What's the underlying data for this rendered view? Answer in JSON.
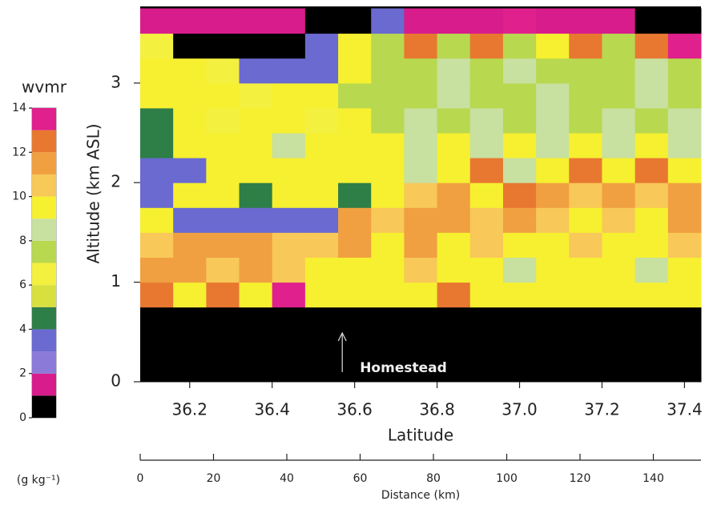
{
  "chart_data": {
    "type": "heatmap",
    "ylabel": "Altitude (km ASL)",
    "xlabel": "Latitude",
    "xlim": [
      36.08,
      37.44
    ],
    "xticks": [
      {
        "value": 36.2,
        "label": "36.2"
      },
      {
        "value": 36.4,
        "label": "36.4"
      },
      {
        "value": 36.6,
        "label": "36.6"
      },
      {
        "value": 36.8,
        "label": "36.8"
      },
      {
        "value": 37.0,
        "label": "37.0"
      },
      {
        "value": 37.2,
        "label": "37.2"
      },
      {
        "value": 37.4,
        "label": "37.4"
      }
    ],
    "ylim": [
      0,
      3.77
    ],
    "yticks": [
      0,
      1,
      2,
      3
    ],
    "x2label": "Distance (km)",
    "x2lim": [
      0,
      153
    ],
    "x2ticks": [
      0,
      20,
      40,
      60,
      80,
      100,
      120,
      140
    ],
    "colorbar": {
      "title": "wvmr",
      "unit": "(g kg⁻¹)",
      "lim": [
        0,
        14
      ],
      "ticks": [
        0,
        2,
        4,
        6,
        8,
        10,
        12,
        14
      ],
      "colors": [
        "#000000",
        "#d81c8c",
        "#8c7ad8",
        "#6a6ad0",
        "#2e7e48",
        "#d8e040",
        "#f4f040",
        "#b8d850",
        "#c8e0a0",
        "#f6f030",
        "#f8c858",
        "#f0a040",
        "#e87830",
        "#e0208c"
      ]
    },
    "annotation": {
      "text": "Homestead",
      "x": 36.57
    },
    "xbins": [
      36.08,
      36.16,
      36.24,
      36.32,
      36.4,
      36.48,
      36.56,
      36.64,
      36.72,
      36.8,
      36.88,
      36.96,
      37.04,
      37.12,
      37.2,
      37.28,
      37.36,
      37.44
    ],
    "ybins": [
      0,
      0.25,
      0.5,
      0.75,
      1.0,
      1.25,
      1.5,
      1.75,
      2.0,
      2.25,
      2.5,
      2.75,
      3.0,
      3.25,
      3.5,
      3.75
    ],
    "z": [
      [
        0.5,
        0.5,
        0.5,
        0.5,
        0.5,
        0.5,
        0.5,
        0.5,
        0.5,
        0.5,
        0.5,
        0.5,
        0.5,
        0.5,
        0.5,
        0.5,
        0.5
      ],
      [
        0.5,
        0.5,
        0.5,
        0.5,
        0.5,
        0.5,
        0.5,
        0.5,
        0.5,
        0.5,
        0.5,
        0.5,
        0.5,
        0.5,
        0.5,
        0.5,
        0.5
      ],
      [
        0.5,
        0.5,
        0.5,
        0.5,
        0.5,
        0.5,
        0.5,
        0.5,
        0.5,
        0.5,
        0.5,
        0.5,
        0.5,
        0.5,
        0.5,
        0.5,
        0.5
      ],
      [
        12.5,
        9.5,
        12.5,
        9.5,
        13.5,
        9.5,
        9.5,
        9.5,
        9.5,
        12.5,
        9.5,
        9.5,
        9.5,
        9.5,
        9.5,
        9.5,
        9.5
      ],
      [
        11.5,
        11.5,
        10.5,
        11.5,
        10.5,
        9.5,
        9.5,
        9.5,
        10.5,
        9.5,
        9.5,
        8.5,
        9.5,
        9.5,
        9.5,
        8.5,
        9.5
      ],
      [
        10.5,
        11.5,
        11.5,
        11.5,
        10.5,
        10.5,
        11.5,
        9.5,
        11.5,
        9.5,
        10.5,
        9.5,
        9.5,
        10.5,
        9.5,
        9.5,
        10.5
      ],
      [
        9.5,
        3.5,
        3.5,
        3.5,
        3.5,
        3.5,
        11.5,
        10.5,
        11.5,
        11.5,
        10.5,
        11.5,
        10.5,
        9.5,
        10.5,
        9.5,
        11.5
      ],
      [
        3.5,
        9.5,
        9.5,
        4.5,
        9.5,
        9.5,
        4.5,
        9.5,
        10.5,
        11.5,
        9.5,
        12.5,
        11.5,
        10.5,
        11.5,
        10.5,
        11.5
      ],
      [
        3.5,
        3.5,
        9.5,
        9.5,
        9.5,
        9.5,
        9.5,
        9.5,
        8.5,
        9.5,
        12.5,
        8.5,
        9.5,
        12.5,
        9.5,
        12.5,
        9.5
      ],
      [
        4.5,
        9.5,
        9.5,
        9.5,
        8.5,
        9.5,
        9.5,
        9.5,
        8.5,
        9.5,
        8.5,
        9.5,
        8.5,
        9.5,
        8.5,
        9.5,
        8.5
      ],
      [
        4.5,
        9.5,
        6.5,
        9.5,
        9.5,
        6.5,
        9.5,
        7.5,
        8.5,
        7.5,
        8.5,
        7.5,
        8.5,
        7.5,
        8.5,
        7.5,
        8.5
      ],
      [
        9.5,
        9.5,
        9.5,
        6.5,
        9.5,
        9.5,
        7.5,
        7.5,
        7.5,
        8.5,
        7.5,
        7.5,
        8.5,
        7.5,
        7.5,
        8.5,
        7.5
      ],
      [
        9.5,
        9.5,
        6.5,
        3.5,
        3.5,
        3.5,
        9.5,
        7.5,
        7.5,
        8.5,
        7.5,
        8.5,
        7.5,
        7.5,
        7.5,
        8.5,
        7.5
      ],
      [
        6.5,
        0.5,
        0.5,
        0.5,
        0.5,
        3.5,
        9.5,
        7.5,
        12.5,
        7.5,
        12.5,
        7.5,
        9.5,
        12.5,
        7.5,
        12.5,
        13.5
      ],
      [
        1.5,
        1.5,
        1.5,
        1.5,
        1.5,
        0.5,
        0.5,
        3.5,
        1.5,
        1.5,
        1.5,
        13.5,
        1.5,
        1.5,
        1.5,
        0.5,
        0.5
      ]
    ]
  }
}
